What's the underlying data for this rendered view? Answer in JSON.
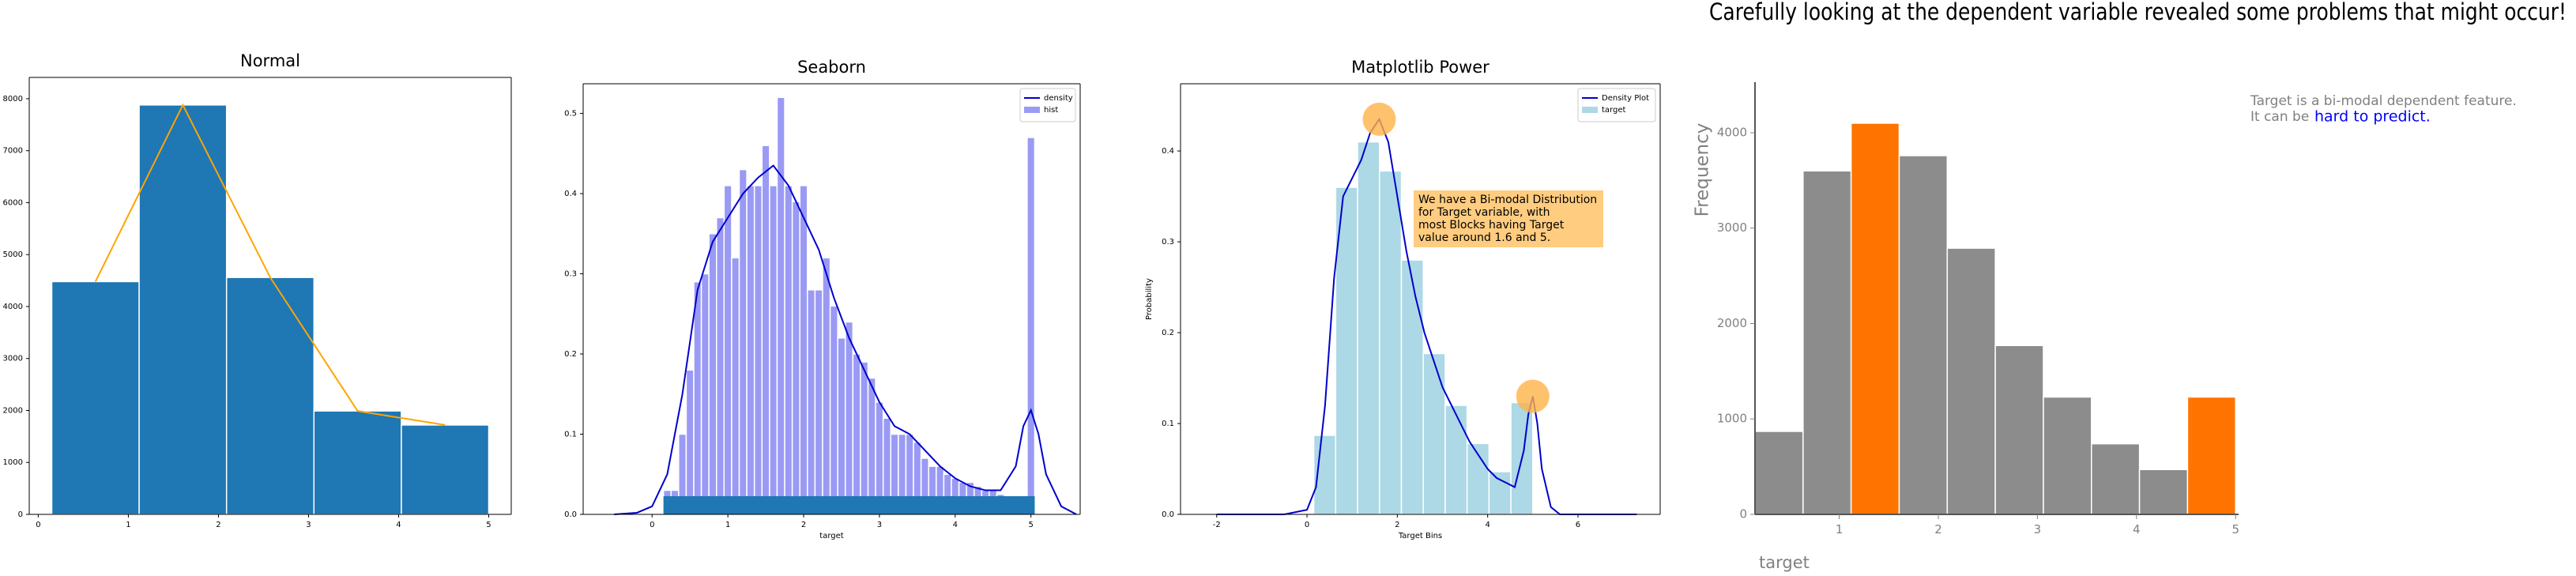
{
  "chart_data": [
    {
      "type": "histogram",
      "title": "Normal",
      "spines": [
        "left",
        "right",
        "top",
        "bottom"
      ],
      "bins": [
        0.15,
        1.12,
        2.09,
        3.06,
        4.03,
        5.0
      ],
      "values": [
        4480,
        7880,
        4560,
        1990,
        1720
      ],
      "color": "#1f77b4",
      "line": {
        "x": [
          0.635,
          1.605,
          2.575,
          3.545,
          4.515
        ],
        "values": [
          4480,
          7880,
          4560,
          1990,
          1720
        ],
        "color": "#ffa500"
      },
      "xlim": [
        -0.1,
        5.25
      ],
      "ylim": [
        0,
        8410
      ],
      "xticks": [
        0,
        1,
        2,
        3,
        4,
        5
      ],
      "yticks": [
        0,
        1000,
        2000,
        3000,
        4000,
        5000,
        6000,
        7000,
        8000
      ]
    },
    {
      "type": "histogram",
      "title": "Seaborn",
      "xlabel": "target",
      "spines": [
        "left",
        "right",
        "top",
        "bottom"
      ],
      "name": "hist",
      "color": "#9a9af5",
      "bins": [
        0.15,
        0.25,
        0.35,
        0.45,
        0.55,
        0.65,
        0.75,
        0.85,
        0.95,
        1.05,
        1.15,
        1.25,
        1.35,
        1.45,
        1.55,
        1.65,
        1.75,
        1.85,
        1.95,
        2.05,
        2.15,
        2.25,
        2.35,
        2.45,
        2.55,
        2.65,
        2.75,
        2.85,
        2.95,
        3.05,
        3.15,
        3.25,
        3.35,
        3.45,
        3.55,
        3.65,
        3.75,
        3.85,
        3.95,
        4.05,
        4.15,
        4.25,
        4.35,
        4.45,
        4.55,
        4.65,
        4.75,
        4.85,
        4.95,
        5.05
      ],
      "values": [
        0.03,
        0.03,
        0.1,
        0.18,
        0.29,
        0.3,
        0.35,
        0.37,
        0.41,
        0.32,
        0.43,
        0.41,
        0.41,
        0.46,
        0.41,
        0.52,
        0.41,
        0.39,
        0.41,
        0.28,
        0.28,
        0.32,
        0.26,
        0.22,
        0.24,
        0.2,
        0.19,
        0.17,
        0.14,
        0.12,
        0.1,
        0.1,
        0.1,
        0.09,
        0.07,
        0.06,
        0.06,
        0.05,
        0.045,
        0.04,
        0.04,
        0.035,
        0.03,
        0.03,
        0.025,
        0.02,
        0.02,
        0.02,
        0.47
      ],
      "rug": "#1f77b4",
      "line": {
        "name": "density",
        "color": "#0000cc",
        "x": [
          -0.5,
          -0.2,
          0,
          0.2,
          0.4,
          0.6,
          0.8,
          1.0,
          1.2,
          1.4,
          1.6,
          1.8,
          2.0,
          2.2,
          2.4,
          2.6,
          2.8,
          3.0,
          3.2,
          3.4,
          3.6,
          3.8,
          4.0,
          4.2,
          4.4,
          4.6,
          4.8,
          4.9,
          5.0,
          5.1,
          5.2,
          5.4,
          5.6
        ],
        "values": [
          0,
          0.002,
          0.01,
          0.05,
          0.15,
          0.28,
          0.34,
          0.37,
          0.4,
          0.42,
          0.435,
          0.41,
          0.37,
          0.33,
          0.27,
          0.22,
          0.18,
          0.14,
          0.11,
          0.1,
          0.08,
          0.06,
          0.045,
          0.035,
          0.03,
          0.03,
          0.06,
          0.11,
          0.13,
          0.1,
          0.05,
          0.01,
          0
        ]
      },
      "xlim": [
        -0.91,
        5.65
      ],
      "ylim": [
        0,
        0.537
      ],
      "xticks": [
        0,
        1,
        2,
        3,
        4,
        5
      ],
      "yticks": [
        0.0,
        0.1,
        0.2,
        0.3,
        0.4,
        0.5
      ],
      "ytick_labels": [
        "0.0",
        "0.1",
        "0.2",
        "0.3",
        "0.4",
        "0.5"
      ]
    },
    {
      "type": "histogram",
      "title": "Matplotlib Power",
      "xlabel": "Target Bins",
      "ylabel": "Probability",
      "spines": [
        "left",
        "right",
        "top",
        "bottom"
      ],
      "name": "target",
      "color": "#add8e6",
      "bins": [
        0.15,
        0.635,
        1.12,
        1.605,
        2.09,
        2.575,
        3.06,
        3.545,
        4.03,
        4.515,
        5.0
      ],
      "values": [
        0.087,
        0.36,
        0.41,
        0.378,
        0.28,
        0.177,
        0.12,
        0.078,
        0.047,
        0.123
      ],
      "line": {
        "name": "Density Plot",
        "color": "#0000cc",
        "x": [
          -2,
          -0.5,
          0,
          0.2,
          0.4,
          0.6,
          0.8,
          1.0,
          1.2,
          1.4,
          1.6,
          1.8,
          2.0,
          2.2,
          2.4,
          2.6,
          2.8,
          3.0,
          3.2,
          3.4,
          3.6,
          3.8,
          4.0,
          4.2,
          4.4,
          4.6,
          4.8,
          4.9,
          5.0,
          5.1,
          5.2,
          5.4,
          5.6,
          7.3
        ],
        "values": [
          0,
          0,
          0.005,
          0.03,
          0.12,
          0.26,
          0.35,
          0.37,
          0.39,
          0.42,
          0.435,
          0.41,
          0.35,
          0.29,
          0.24,
          0.2,
          0.17,
          0.14,
          0.12,
          0.1,
          0.08,
          0.065,
          0.05,
          0.04,
          0.035,
          0.03,
          0.07,
          0.11,
          0.13,
          0.1,
          0.05,
          0.008,
          0,
          0
        ]
      },
      "highlights": {
        "x": [
          1.6,
          5.0
        ],
        "values": [
          0.435,
          0.13
        ],
        "color": "#ffb347"
      },
      "annotation": [
        "We have a Bi-modal Distribution",
        "for Target variable, with",
        "most Blocks having Target",
        "value around 1.6 and 5."
      ],
      "annotation_color": "#ffcc80",
      "xlim": [
        -2.8,
        7.82
      ],
      "ylim": [
        0,
        0.474
      ],
      "xticks": [
        -2,
        0,
        2,
        4,
        6
      ],
      "yticks": [
        0.0,
        0.1,
        0.2,
        0.3,
        0.4
      ],
      "ytick_labels": [
        "0.0",
        "0.1",
        "0.2",
        "0.3",
        "0.4"
      ]
    },
    {
      "type": "histogram",
      "suptitle": "Carefully looking at the dependent variable revealed some problems that might occur!",
      "xlabel": "target",
      "ylabel": "Frequency",
      "spines": [
        "left",
        "bottom"
      ],
      "text_color": "#808080",
      "bins": [
        0.15,
        0.635,
        1.12,
        1.605,
        2.09,
        2.575,
        3.06,
        3.545,
        4.03,
        4.515,
        5.0
      ],
      "values": [
        870,
        3600,
        4100,
        3760,
        2790,
        1770,
        1230,
        740,
        470,
        1230
      ],
      "colors": [
        "#8c8c8c",
        "#8c8c8c",
        "#ff7300",
        "#8c8c8c",
        "#8c8c8c",
        "#8c8c8c",
        "#8c8c8c",
        "#8c8c8c",
        "#8c8c8c",
        "#ff7300"
      ],
      "notes": [
        "Target is a bi-modal dependent feature.",
        "It can be",
        "hard to predict."
      ],
      "note_highlight": "#0000ff",
      "xlim": [
        0.15,
        5.03
      ],
      "ylim": [
        0,
        4530
      ],
      "xticks": [
        1,
        2,
        3,
        4,
        5
      ],
      "yticks": [
        0,
        1000,
        2000,
        3000,
        4000
      ]
    }
  ]
}
